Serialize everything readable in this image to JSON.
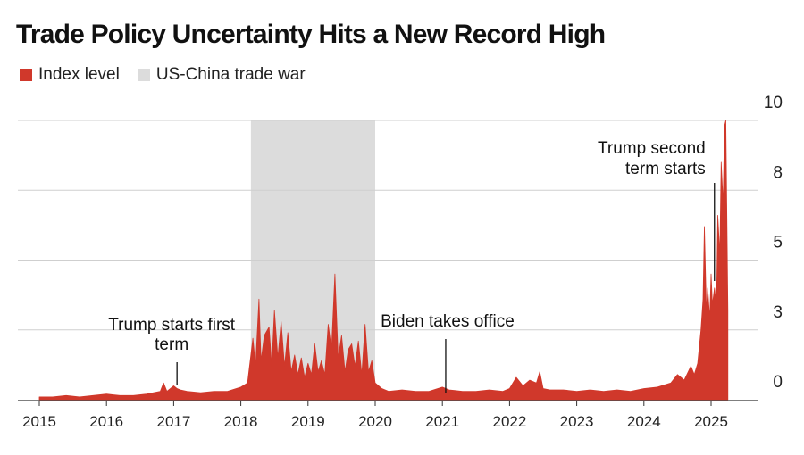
{
  "title": "Trade Policy Uncertainty Hits a New Record High",
  "legend": [
    {
      "label": "Index level",
      "color": "#d0382b"
    },
    {
      "label": "US-China trade war",
      "color": "#dcdcdc"
    }
  ],
  "chart_data": {
    "type": "area",
    "title": "Trade Policy Uncertainty Hits a New Record High",
    "xlabel": "",
    "ylabel": "",
    "x_ticks": [
      "2015",
      "2016",
      "2017",
      "2018",
      "2019",
      "2020",
      "2021",
      "2022",
      "2023",
      "2024",
      "2025"
    ],
    "y_ticks": [
      {
        "value": 0,
        "label": "0"
      },
      {
        "value": 2.5,
        "label": "3"
      },
      {
        "value": 5,
        "label": "5"
      },
      {
        "value": 7.5,
        "label": "8"
      },
      {
        "value": 10,
        "label": "10"
      }
    ],
    "xlim": [
      2015.0,
      2025.85
    ],
    "ylim": [
      0,
      10
    ],
    "grid": true,
    "legend_position": "top-left",
    "shaded_regions": [
      {
        "label": "US-China trade war",
        "start": 2018.15,
        "end": 2020.0
      }
    ],
    "series": [
      {
        "name": "Index level",
        "color": "#d0382b",
        "x": [
          2015.0,
          2015.2,
          2015.4,
          2015.6,
          2015.8,
          2016.0,
          2016.2,
          2016.4,
          2016.6,
          2016.8,
          2016.85,
          2016.9,
          2016.95,
          2017.0,
          2017.05,
          2017.1,
          2017.2,
          2017.4,
          2017.6,
          2017.8,
          2018.0,
          2018.1,
          2018.18,
          2018.22,
          2018.27,
          2018.3,
          2018.35,
          2018.42,
          2018.46,
          2018.5,
          2018.55,
          2018.6,
          2018.65,
          2018.7,
          2018.75,
          2018.8,
          2018.85,
          2018.9,
          2018.95,
          2019.0,
          2019.05,
          2019.1,
          2019.15,
          2019.2,
          2019.25,
          2019.3,
          2019.35,
          2019.4,
          2019.45,
          2019.5,
          2019.55,
          2019.6,
          2019.65,
          2019.7,
          2019.75,
          2019.8,
          2019.85,
          2019.9,
          2019.95,
          2020.0,
          2020.05,
          2020.1,
          2020.2,
          2020.4,
          2020.6,
          2020.8,
          2021.0,
          2021.1,
          2021.3,
          2021.5,
          2021.7,
          2021.9,
          2022.0,
          2022.1,
          2022.2,
          2022.3,
          2022.4,
          2022.45,
          2022.5,
          2022.6,
          2022.8,
          2023.0,
          2023.2,
          2023.4,
          2023.6,
          2023.8,
          2024.0,
          2024.2,
          2024.4,
          2024.5,
          2024.6,
          2024.7,
          2024.75,
          2024.8,
          2024.85,
          2024.88,
          2024.9,
          2024.93,
          2024.95,
          2024.98,
          2025.0,
          2025.02,
          2025.05,
          2025.08,
          2025.1,
          2025.13,
          2025.15,
          2025.18,
          2025.2,
          2025.22,
          2025.25
        ],
        "values": [
          0.1,
          0.1,
          0.15,
          0.1,
          0.15,
          0.2,
          0.15,
          0.15,
          0.2,
          0.3,
          0.6,
          0.3,
          0.4,
          0.5,
          0.4,
          0.35,
          0.3,
          0.25,
          0.3,
          0.3,
          0.45,
          0.6,
          2.2,
          1.2,
          3.6,
          1.4,
          2.3,
          2.6,
          1.2,
          3.2,
          1.5,
          2.8,
          1.2,
          2.4,
          1.0,
          1.6,
          0.9,
          1.5,
          0.8,
          1.3,
          0.9,
          2.0,
          1.0,
          1.4,
          0.9,
          2.7,
          1.8,
          4.5,
          1.5,
          2.3,
          1.0,
          1.8,
          2.0,
          1.2,
          2.1,
          0.9,
          2.7,
          1.0,
          1.4,
          0.6,
          0.5,
          0.4,
          0.3,
          0.35,
          0.3,
          0.3,
          0.45,
          0.35,
          0.3,
          0.3,
          0.35,
          0.3,
          0.4,
          0.8,
          0.5,
          0.7,
          0.6,
          1.0,
          0.4,
          0.35,
          0.35,
          0.3,
          0.35,
          0.3,
          0.35,
          0.3,
          0.4,
          0.45,
          0.6,
          0.9,
          0.7,
          1.2,
          0.9,
          1.3,
          2.5,
          3.6,
          6.2,
          3.2,
          4.0,
          2.9,
          4.5,
          3.4,
          4.0,
          3.3,
          6.6,
          5.2,
          8.5,
          7.0,
          9.8,
          10.0,
          3.2
        ]
      }
    ],
    "annotations": [
      {
        "text": [
          "Trump starts first",
          "term"
        ],
        "x": 2017.05
      },
      {
        "text": [
          "Biden takes office"
        ],
        "x": 2021.05
      },
      {
        "text": [
          "Trump second",
          "term starts"
        ],
        "x": 2025.05
      }
    ]
  }
}
